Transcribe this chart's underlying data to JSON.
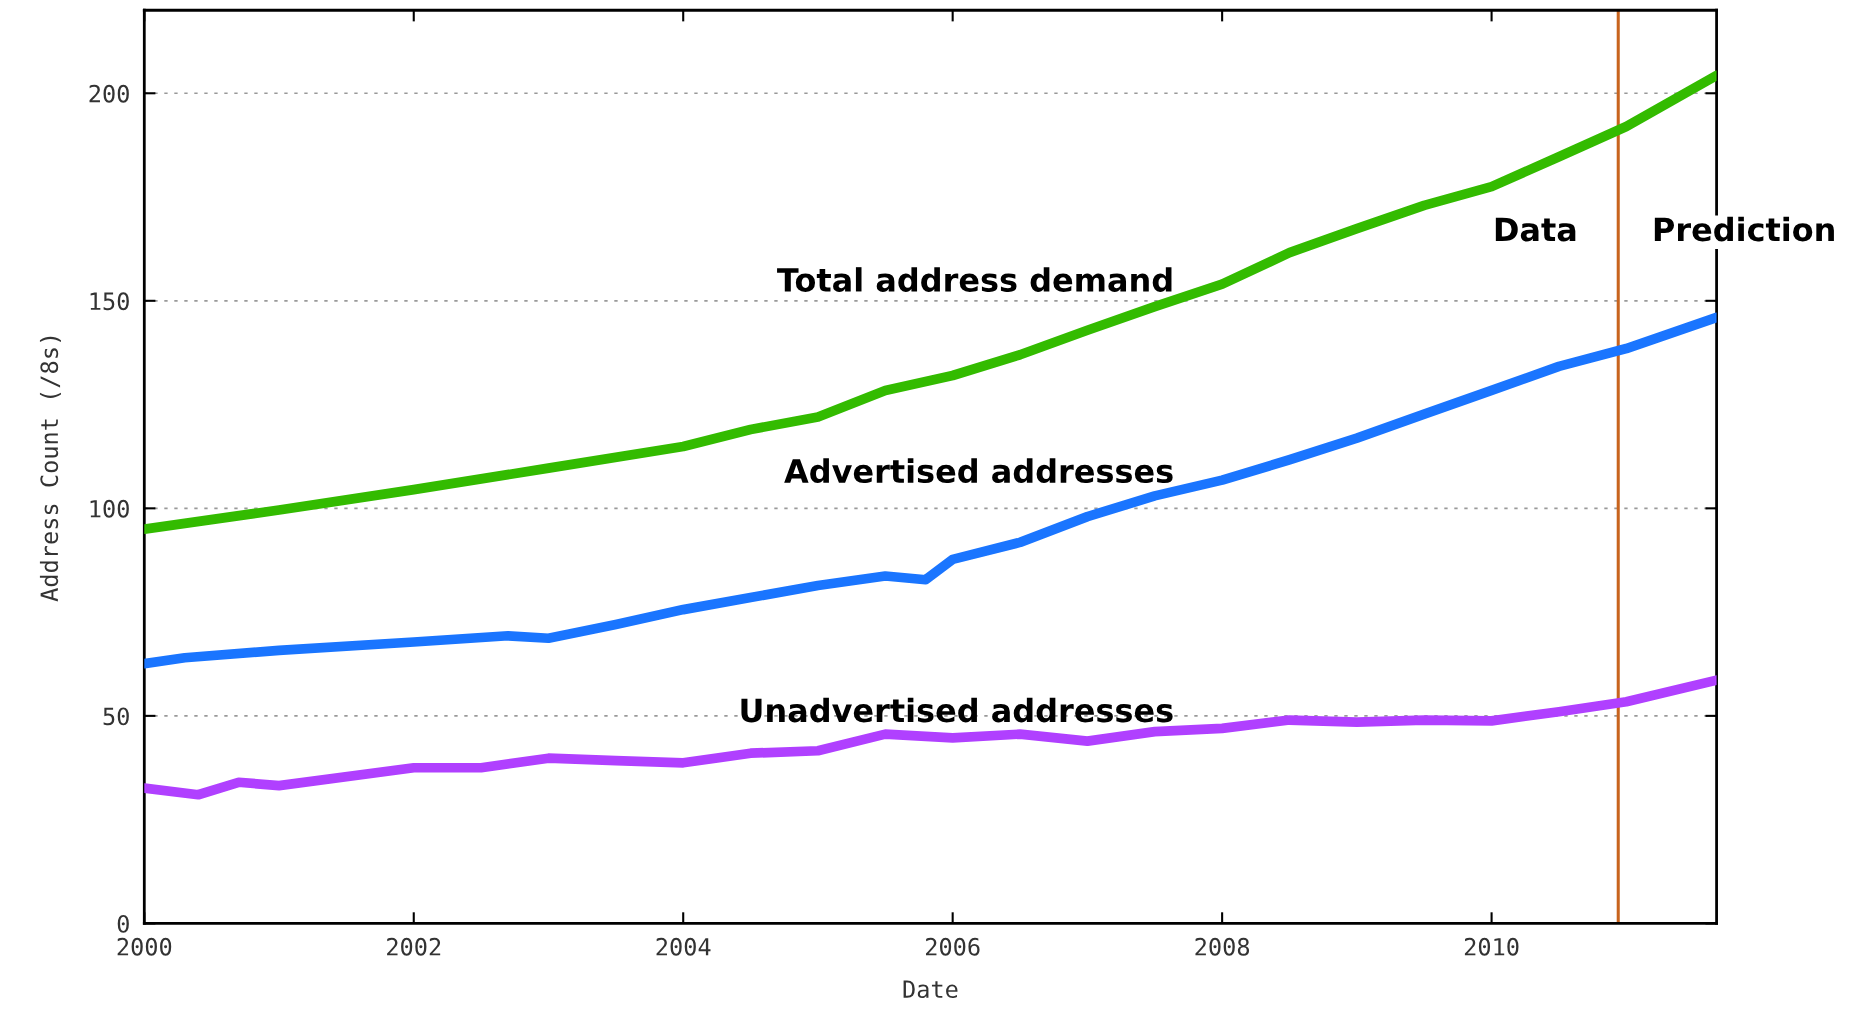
{
  "chart_data": {
    "type": "line",
    "xlabel": "Date",
    "ylabel": "Address Count (/8s)",
    "x": [
      2000,
      2001,
      2002,
      2003,
      2004,
      2004.5,
      2005,
      2005.5,
      2006,
      2006.5,
      2007,
      2007.5,
      2008,
      2008.5,
      2009,
      2009.5,
      2010,
      2010.5,
      2011,
      2011.67
    ],
    "series": [
      {
        "name": "Total address demand",
        "color": "#33bb00",
        "values": [
          95,
          99.6,
          104.5,
          109.7,
          114.9,
          119,
          122,
          128.4,
          132,
          137,
          142.9,
          148.6,
          154,
          161.6,
          167.4,
          173,
          177.5,
          184.7,
          192,
          204.3
        ]
      },
      {
        "name": "Advertised addresses",
        "color": "#1a75ff",
        "x": [
          2000,
          2000.3,
          2001,
          2002,
          2002.7,
          2003,
          2003.5,
          2004,
          2004.5,
          2005,
          2005.5,
          2005.8,
          2006,
          2006.5,
          2007,
          2007.5,
          2008,
          2008.5,
          2009,
          2009.5,
          2010,
          2010.5,
          2011,
          2011.67
        ],
        "values": [
          62.6,
          64,
          65.8,
          67.8,
          69.3,
          68.7,
          72,
          75.6,
          78.5,
          81.4,
          83.7,
          82.8,
          87.7,
          91.8,
          98,
          103,
          106.8,
          111.7,
          116.9,
          122.7,
          128.4,
          134.2,
          138.5,
          146
        ]
      },
      {
        "name": "Unadvertised addresses",
        "color": "#b040ff",
        "x": [
          2000,
          2000.4,
          2000.7,
          2001,
          2002,
          2002.5,
          2003,
          2003.5,
          2004,
          2004.5,
          2005,
          2005.5,
          2006,
          2006.5,
          2007,
          2007.5,
          2008,
          2008.5,
          2009,
          2009.5,
          2010,
          2010.5,
          2011,
          2011.67
        ],
        "values": [
          32.6,
          31,
          34,
          33.2,
          37.5,
          37.5,
          39.8,
          39.2,
          38.7,
          41,
          41.6,
          45.6,
          44.7,
          45.6,
          43.9,
          46.2,
          47,
          49,
          48.5,
          49,
          48.8,
          51,
          53.4,
          58.6
        ]
      }
    ],
    "xlim": [
      2000,
      2011.67
    ],
    "xticks": [
      2000,
      2002,
      2004,
      2006,
      2008,
      2010
    ],
    "ylim": [
      0,
      220
    ],
    "yticks": [
      0,
      50,
      100,
      150,
      200
    ],
    "grid": "y",
    "legend": false,
    "ref_lines": [
      {
        "axis": "x",
        "value": 2010.94,
        "label": "Data",
        "color": "#c8641e"
      }
    ],
    "annotations": [
      "Prediction"
    ]
  }
}
